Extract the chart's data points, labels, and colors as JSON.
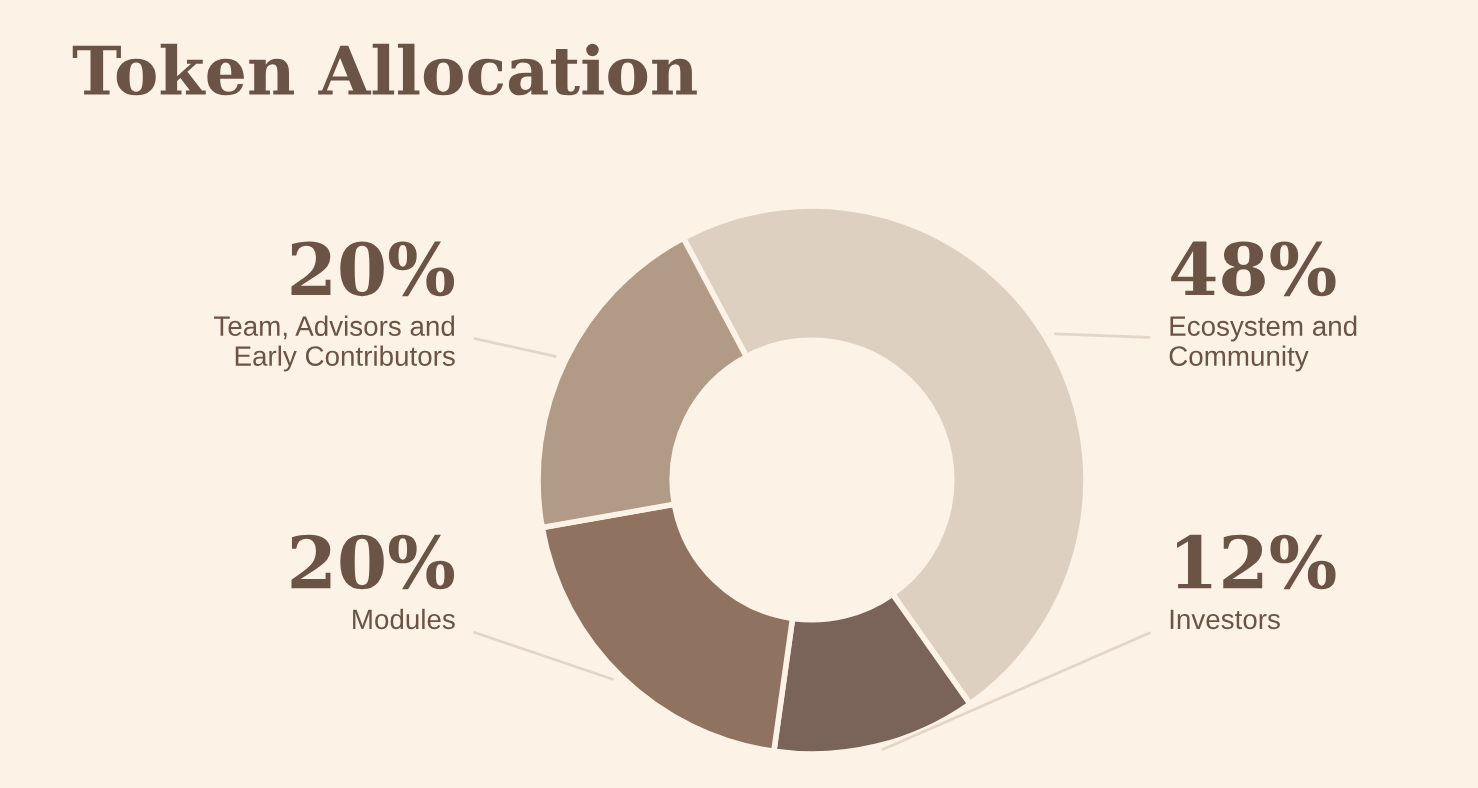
{
  "chart_data": {
    "type": "donut",
    "title": "Token Allocation",
    "categories": [
      "Ecosystem and Community",
      "Investors",
      "Modules",
      "Team, Advisors and Early Contributors"
    ],
    "values": [
      48,
      12,
      20,
      20
    ],
    "value_labels": [
      "48%",
      "12%",
      "20%",
      "20%"
    ],
    "colors": [
      "#ddd0c1",
      "#7a6358",
      "#8f7360",
      "#b19a86"
    ],
    "legend": false
  }
}
